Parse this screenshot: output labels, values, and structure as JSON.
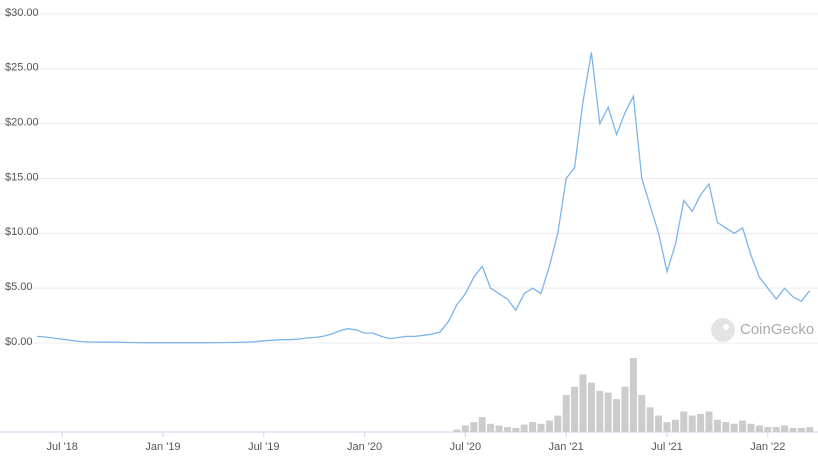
{
  "chart_data": {
    "type": "line",
    "watermark": "CoinGecko",
    "categories": [
      null,
      null,
      null,
      "Jul '18",
      null,
      null,
      null,
      null,
      null,
      null,
      null,
      null,
      null,
      null,
      null,
      "Jan '19",
      null,
      null,
      null,
      null,
      null,
      null,
      null,
      null,
      null,
      null,
      null,
      "Jul '19",
      null,
      null,
      null,
      null,
      null,
      null,
      null,
      null,
      null,
      null,
      null,
      "Jan '20",
      null,
      null,
      null,
      null,
      null,
      null,
      null,
      null,
      null,
      null,
      null,
      "Jul '20",
      null,
      null,
      null,
      null,
      null,
      null,
      null,
      null,
      null,
      null,
      null,
      "Jan '21",
      null,
      null,
      null,
      null,
      null,
      null,
      null,
      null,
      null,
      null,
      null,
      "Jul '21",
      null,
      null,
      null,
      null,
      null,
      null,
      null,
      null,
      null,
      null,
      null,
      "Jan '22",
      null,
      null,
      null,
      null,
      null
    ],
    "series": [
      {
        "color": "#7cb5ec",
        "values": [
          0.6,
          0.55,
          0.45,
          0.35,
          0.25,
          0.15,
          0.1,
          0.08,
          0.07,
          0.07,
          0.06,
          0.05,
          0.04,
          0.03,
          0.03,
          0.03,
          0.03,
          0.03,
          0.03,
          0.03,
          0.03,
          0.04,
          0.04,
          0.05,
          0.06,
          0.08,
          0.12,
          0.2,
          0.25,
          0.3,
          0.3,
          0.35,
          0.45,
          0.5,
          0.6,
          0.8,
          1.1,
          1.3,
          1.2,
          0.9,
          0.9,
          0.6,
          0.4,
          0.5,
          0.6,
          0.6,
          0.7,
          0.8,
          1.0,
          2.0,
          3.5,
          4.5,
          6.0,
          7.0,
          5.0,
          4.5,
          4.0,
          3.0,
          4.5,
          5.0,
          4.5,
          7.0,
          10.0,
          15.0,
          16.0,
          22.0,
          26.5,
          20.0,
          21.5,
          19.0,
          21.0,
          22.5,
          15.0,
          12.5,
          10.0,
          6.5,
          9.0,
          13.0,
          12.0,
          13.5,
          14.5,
          11.0,
          10.5,
          10.0,
          10.5,
          8.0,
          6.0,
          5.0,
          4.0,
          5.0,
          4.2,
          3.8,
          4.8
        ]
      }
    ],
    "volume": {
      "color": "#cccccc",
      "values": [
        0,
        0,
        0,
        0,
        0,
        0,
        0,
        0,
        0,
        0,
        0,
        0,
        0,
        0,
        0,
        0,
        0,
        0,
        0,
        0,
        0,
        0,
        0,
        0,
        0,
        0,
        0,
        0,
        0,
        0,
        0,
        0,
        0,
        0,
        0,
        0,
        0,
        0,
        0,
        0,
        0,
        0,
        0,
        0,
        0,
        0,
        0,
        0,
        0,
        0,
        3,
        8,
        12,
        18,
        10,
        8,
        6,
        5,
        9,
        12,
        10,
        14,
        20,
        45,
        55,
        70,
        60,
        50,
        48,
        40,
        55,
        90,
        45,
        30,
        20,
        12,
        15,
        25,
        20,
        22,
        25,
        15,
        12,
        10,
        14,
        10,
        8,
        6,
        6,
        8,
        5,
        5,
        6
      ]
    },
    "ylim": [
      0,
      30
    ],
    "yticks": [
      {
        "value": 0,
        "label": "$0.00"
      },
      {
        "value": 5,
        "label": "$5.00"
      },
      {
        "value": 10,
        "label": "$10.00"
      },
      {
        "value": 15,
        "label": "$15.00"
      },
      {
        "value": 20,
        "label": "$20.00"
      },
      {
        "value": 25,
        "label": "$25.00"
      },
      {
        "value": 30,
        "label": "$30.00"
      }
    ],
    "grid": true
  }
}
